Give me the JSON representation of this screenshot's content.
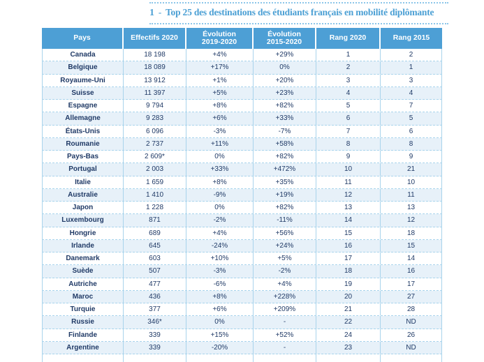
{
  "figure": {
    "number": "1",
    "separator": "-",
    "title": "Top 25 des destinations des étudiants français en mobilité diplômante"
  },
  "colors": {
    "header_bg": "#4d9fd5",
    "row_alt_bg": "#e7f1f9",
    "grid_blue": "#a9d4ec",
    "text_navy": "#203a66",
    "accent_blue": "#4a9fd4",
    "dotted_rule": "#8cc6e9"
  },
  "chart_data": {
    "type": "table",
    "figure_number": "1",
    "title": "Top 25 des destinations des étudiants français en mobilité diplômante",
    "columns": [
      "Pays",
      "Effectifs 2020",
      "Évolution 2019-2020",
      "Évolution 2015-2020",
      "Rang 2020",
      "Rang 2015"
    ],
    "column_header_lines": [
      [
        "Pays"
      ],
      [
        "Effectifs 2020"
      ],
      [
        "Évolution",
        "2019-2020"
      ],
      [
        "Évolution",
        "2015-2020"
      ],
      [
        "Rang 2020"
      ],
      [
        "Rang 2015"
      ]
    ],
    "column_keys": [
      "pays",
      "effectifs-2020",
      "evolution-2019-2020",
      "evolution-2015-2020",
      "rang-2020",
      "rang-2015"
    ],
    "rows": [
      [
        "Canada",
        "18 198",
        "+4%",
        "+29%",
        "1",
        "2"
      ],
      [
        "Belgique",
        "18 089",
        "+17%",
        "0%",
        "2",
        "1"
      ],
      [
        "Royaume-Uni",
        "13 912",
        "+1%",
        "+20%",
        "3",
        "3"
      ],
      [
        "Suisse",
        "11 397",
        "+5%",
        "+23%",
        "4",
        "4"
      ],
      [
        "Espagne",
        "9 794",
        "+8%",
        "+82%",
        "5",
        "7"
      ],
      [
        "Allemagne",
        "9 283",
        "+6%",
        "+33%",
        "6",
        "5"
      ],
      [
        "États-Unis",
        "6 096",
        "-3%",
        "-7%",
        "7",
        "6"
      ],
      [
        "Roumanie",
        "2 737",
        "+11%",
        "+58%",
        "8",
        "8"
      ],
      [
        "Pays-Bas",
        "2 609*",
        "0%",
        "+82%",
        "9",
        "9"
      ],
      [
        "Portugal",
        "2 003",
        "+33%",
        "+472%",
        "10",
        "21"
      ],
      [
        "Italie",
        "1 659",
        "+8%",
        "+35%",
        "11",
        "10"
      ],
      [
        "Australie",
        "1 410",
        "-9%",
        "+19%",
        "12",
        "11"
      ],
      [
        "Japon",
        "1 228",
        "0%",
        "+82%",
        "13",
        "13"
      ],
      [
        "Luxembourg",
        "871",
        "-2%",
        "-11%",
        "14",
        "12"
      ],
      [
        "Hongrie",
        "689",
        "+4%",
        "+56%",
        "15",
        "18"
      ],
      [
        "Irlande",
        "645",
        "-24%",
        "+24%",
        "16",
        "15"
      ],
      [
        "Danemark",
        "603",
        "+10%",
        "+5%",
        "17",
        "14"
      ],
      [
        "Suède",
        "507",
        "-3%",
        "-2%",
        "18",
        "16"
      ],
      [
        "Autriche",
        "477",
        "-6%",
        "+4%",
        "19",
        "17"
      ],
      [
        "Maroc",
        "436",
        "+8%",
        "+228%",
        "20",
        "27"
      ],
      [
        "Turquie",
        "377",
        "+6%",
        "+209%",
        "21",
        "28"
      ],
      [
        "Russie",
        "346*",
        "0%",
        "-",
        "22",
        "ND"
      ],
      [
        "Finlande",
        "339",
        "+15%",
        "+52%",
        "24",
        "26"
      ],
      [
        "Argentine",
        "339",
        "-20%",
        "-",
        "23",
        "ND"
      ]
    ],
    "partial_empty_row_at_bottom": true,
    "layout_hints": {
      "zebra_striping": true,
      "first_row_background": "white",
      "header_text_color": "white",
      "grid": "solid vertical, dashed horizontal"
    }
  }
}
